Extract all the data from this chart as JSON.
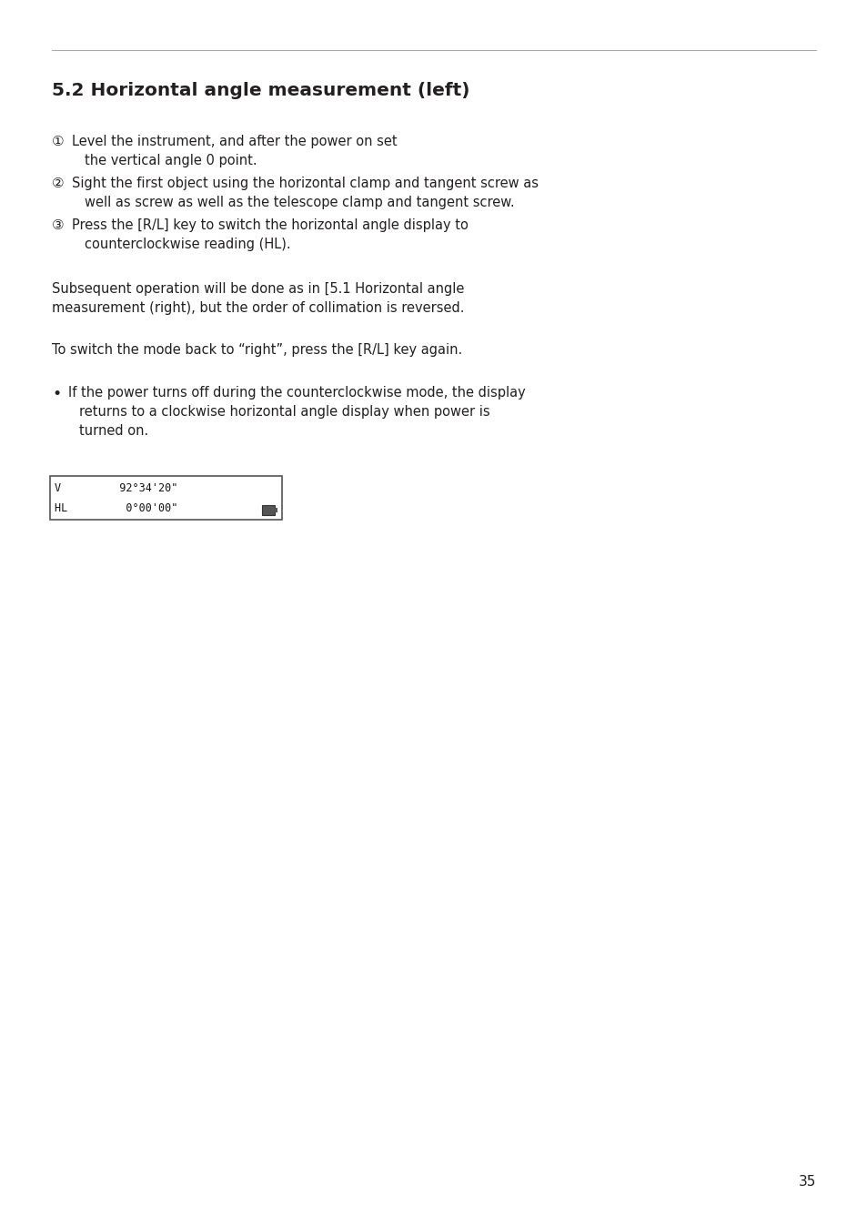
{
  "title": "5.2 Horizontal angle measurement (left)",
  "bg_color": "#ffffff",
  "text_color": "#231f20",
  "title_color": "#231f20",
  "page_number": "35",
  "sections": [
    {
      "symbol": "①",
      "lines": [
        "Level the instrument, and after the power on set",
        "the vertical angle 0 point."
      ]
    },
    {
      "symbol": "②",
      "lines": [
        "Sight the first object using the horizontal clamp and tangent screw as",
        "well as screw as well as the telescope clamp and tangent screw."
      ]
    },
    {
      "symbol": "③",
      "lines": [
        "Press the [R/L] key to switch the horizontal angle display to",
        "counterclockwise reading (HL)."
      ]
    }
  ],
  "paragraph1_line1": "Subsequent operation will be done as in [5.1 Horizontal angle",
  "paragraph1_line2": "measurement (right), but the order of collimation is reversed.",
  "paragraph2": "To switch the mode back to “right”, press the [R/L] key again.",
  "bullet_line1": "If the power turns off during the counterclockwise mode, the display",
  "bullet_line2": "returns to a clockwise horizontal angle display when power is",
  "bullet_line3": "turned on.",
  "display_line1_label": "V",
  "display_line1_value": "92°34'20\"",
  "display_line2_label": "HL",
  "display_line2_value": " 0°00'00\"",
  "rule_color": "#aaaaaa",
  "lcd_border_color": "#555555",
  "lcd_bg_color": "#ffffff",
  "lcd_text_color": "#111111"
}
